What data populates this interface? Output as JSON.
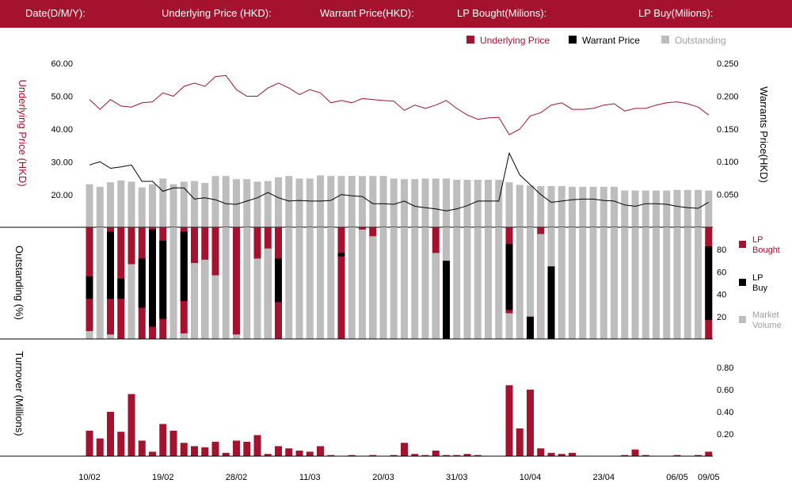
{
  "header": {
    "date_label": "Date(D/M/Y):",
    "underlying_label": "Underlying Price (HKD):",
    "warrant_label": "Warrant  Price(HKD):",
    "lp_bought_label": "LP Bought(Milions):",
    "lp_buy_label": "LP Buy(Milions):"
  },
  "colors": {
    "brand": "#a4122e",
    "warrant": "#000000",
    "outstanding": "#bdbdbd",
    "grid": "#000000"
  },
  "chart_data": [
    {
      "type": "line",
      "legend": [
        "Underlying Price",
        "Warrant  Price",
        "Outstanding"
      ],
      "ylabel_left": "Underlying Price (HKD)",
      "ylabel_right": "Warrants  Price(HKD)",
      "y_left_ticks": [
        "60.00",
        "50.00",
        "40.00",
        "30.00",
        "20.00"
      ],
      "y_right_ticks": [
        "0.250",
        "0.200",
        "0.150",
        "0.100",
        "0.050"
      ],
      "ylim_left": [
        10,
        60
      ],
      "ylim_right": [
        0,
        0.25
      ],
      "x_ticks": [
        {
          "i": 0,
          "label": "10/02"
        },
        {
          "i": 7,
          "label": "19/02"
        },
        {
          "i": 14,
          "label": "28/02"
        },
        {
          "i": 21,
          "label": "11/03"
        },
        {
          "i": 28,
          "label": "20/03"
        },
        {
          "i": 35,
          "label": "31/03"
        },
        {
          "i": 42,
          "label": "10/04"
        },
        {
          "i": 49,
          "label": "23/04"
        },
        {
          "i": 56,
          "label": "06/05"
        },
        {
          "i": 59,
          "label": "09/05"
        }
      ],
      "underlying": [
        49,
        46,
        49,
        47,
        46.7,
        48,
        48.3,
        51,
        50,
        53,
        54,
        53,
        56,
        56.3,
        52,
        50,
        50,
        52.5,
        54,
        52.5,
        50.5,
        52,
        51,
        48,
        48.7,
        48,
        49.3,
        49,
        48.7,
        48.5,
        45.7,
        47.3,
        46.3,
        47.3,
        48.7,
        46.3,
        44.3,
        43,
        43.4,
        43.6,
        38.3,
        40,
        44,
        45,
        47.3,
        48,
        46,
        46,
        46.3,
        47.3,
        47.7,
        45.5,
        46.3,
        46.3,
        47.3,
        48,
        48.3,
        47.7,
        46.7,
        44.3
      ],
      "warrant": [
        0.095,
        0.1,
        0.09,
        0.092,
        0.095,
        0.07,
        0.07,
        0.055,
        0.06,
        0.06,
        0.043,
        0.045,
        0.042,
        0.036,
        0.035,
        0.04,
        0.045,
        0.053,
        0.045,
        0.04,
        0.041,
        0.04,
        0.04,
        0.041,
        0.05,
        0.048,
        0.047,
        0.036,
        0.036,
        0.035,
        0.04,
        0.032,
        0.03,
        0.028,
        0.025,
        0.028,
        0.033,
        0.04,
        0.04,
        0.04,
        0.113,
        0.08,
        0.065,
        0.05,
        0.038,
        0.04,
        0.042,
        0.043,
        0.043,
        0.041,
        0.04,
        0.034,
        0.032,
        0.036,
        0.036,
        0.035,
        0.032,
        0.03,
        0.029,
        0.038
      ],
      "outstanding": [
        68,
        64,
        71,
        74,
        72,
        63,
        68,
        77,
        68,
        72,
        73,
        70,
        81,
        81,
        76,
        76,
        72,
        73,
        79,
        81,
        77,
        77,
        82,
        81,
        81,
        81,
        81,
        81,
        81,
        77,
        76,
        76,
        77,
        77,
        77,
        75,
        75,
        75,
        75,
        75,
        71,
        67,
        66,
        65,
        65,
        65,
        64,
        64,
        64,
        64,
        64,
        58,
        58,
        58,
        58,
        58,
        59,
        59,
        59,
        58
      ]
    },
    {
      "type": "bar",
      "ylabel": "Outstanding (%)",
      "y_ticks": [
        "80",
        "60",
        "40",
        "20"
      ],
      "ylim": [
        0,
        100
      ],
      "legend": [
        "LP Bought",
        "LP Buy",
        "Market Volume"
      ],
      "lp_bought": [
        29,
        0,
        32,
        36,
        33,
        28,
        11,
        18,
        0,
        29,
        32,
        29,
        43,
        0,
        96,
        0,
        28,
        19,
        33,
        0,
        0,
        0,
        0,
        0,
        74,
        0,
        2,
        8,
        0,
        0,
        0,
        0,
        0,
        23,
        0,
        0,
        0,
        0,
        0,
        0,
        3,
        0,
        0,
        6,
        0,
        0,
        0,
        0,
        0,
        0,
        0,
        0,
        0,
        0,
        0,
        0,
        0,
        0,
        0,
        17
      ],
      "lp_buy": [
        20,
        0,
        60,
        18,
        0,
        44,
        87,
        70,
        0,
        62,
        0,
        0,
        0,
        0,
        0,
        0,
        0,
        0,
        39,
        0,
        0,
        0,
        0,
        0,
        3,
        0,
        0,
        0,
        0,
        0,
        0,
        0,
        0,
        0,
        70,
        0,
        0,
        0,
        0,
        0,
        59,
        0,
        20,
        0,
        65,
        0,
        0,
        0,
        0,
        0,
        0,
        0,
        0,
        0,
        0,
        0,
        0,
        0,
        0,
        66
      ],
      "market_volume": [
        7,
        0,
        4,
        0,
        12,
        0,
        0,
        0,
        0,
        5,
        0,
        0,
        0,
        0,
        0,
        0,
        0,
        0,
        0,
        0,
        0,
        0,
        0,
        0,
        0,
        0,
        0,
        0,
        0,
        0,
        0,
        0,
        0,
        0,
        0,
        0,
        0,
        0,
        0,
        0,
        23,
        0,
        0,
        3,
        0,
        0,
        0,
        0,
        0,
        0,
        0,
        0,
        0,
        0,
        0,
        0,
        0,
        0,
        0,
        0
      ]
    },
    {
      "type": "bar",
      "ylabel": "Turnover (Millions)",
      "y_ticks": [
        "0.80",
        "0.60",
        "0.40",
        "0.20"
      ],
      "ylim": [
        0,
        0.8
      ],
      "turnover": [
        0.23,
        0.16,
        0.4,
        0.22,
        0.56,
        0.14,
        0.04,
        0.29,
        0.23,
        0.12,
        0.09,
        0.08,
        0.13,
        0.03,
        0.14,
        0.13,
        0.19,
        0.02,
        0.09,
        0.07,
        0.05,
        0.04,
        0.09,
        0.01,
        0,
        0.01,
        0,
        0.01,
        0,
        0.01,
        0.12,
        0.02,
        0.01,
        0.05,
        0.01,
        0.01,
        0.02,
        0.01,
        0,
        0,
        0.64,
        0.25,
        0.6,
        0.07,
        0.03,
        0.02,
        0.03,
        0,
        0,
        0,
        0,
        0.01,
        0.06,
        0.01,
        0,
        0,
        0.01,
        0,
        0.01,
        0.04
      ]
    }
  ]
}
